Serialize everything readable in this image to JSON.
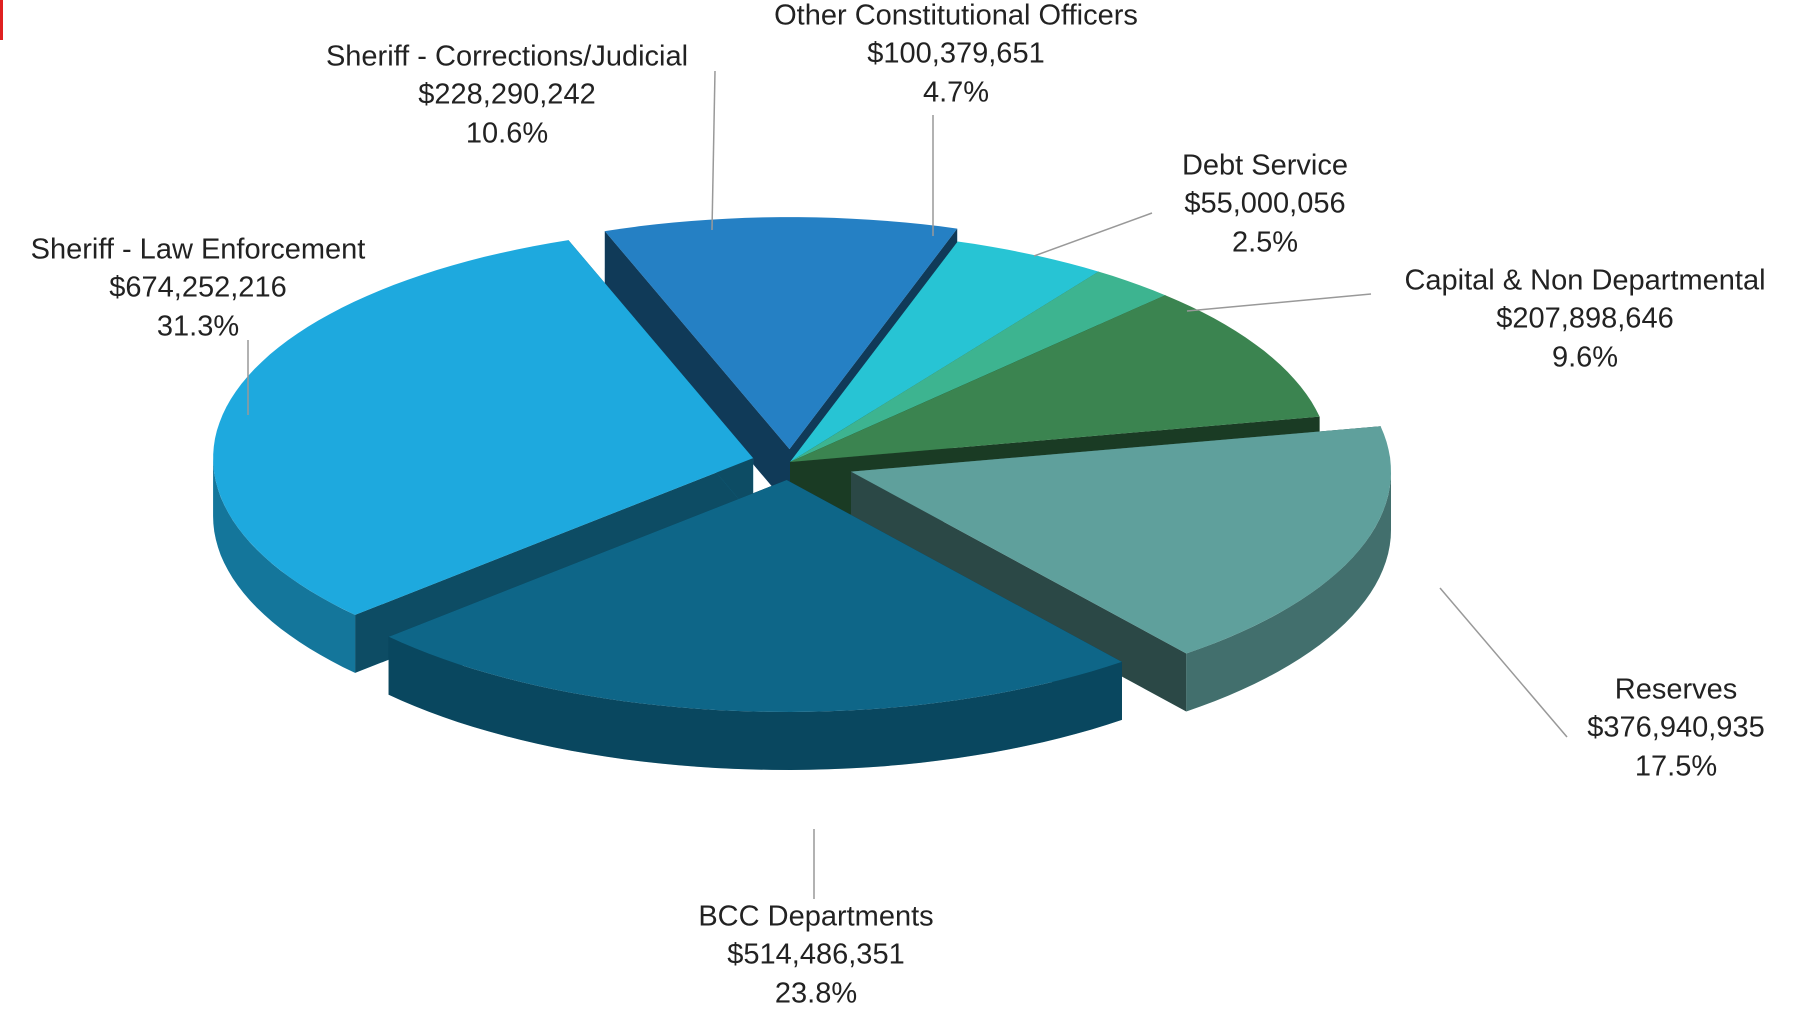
{
  "chart_data": {
    "type": "pie",
    "categories": [
      "Sheriff - Corrections/Judicial",
      "Other Constitutional Officers",
      "Debt Service",
      "Capital & Non Departmental",
      "Reserves",
      "BCC Departments",
      "Sheriff - Law Enforcement"
    ],
    "values": [
      228290242,
      100379651,
      55000056,
      207898646,
      376940935,
      514486351,
      674252216
    ],
    "value_labels": [
      "$228,290,242",
      "$100,379,651",
      "$55,000,056",
      "$207,898,646",
      "$376,940,935",
      "$514,486,351",
      "$674,252,216"
    ],
    "percents": [
      10.6,
      4.7,
      2.5,
      9.6,
      17.5,
      23.8,
      31.3
    ],
    "percent_labels": [
      "10.6%",
      "4.7%",
      "2.5%",
      "9.6%",
      "17.5%",
      "23.8%",
      "31.3%"
    ],
    "colors": [
      "#2580c4",
      "#27c4d4",
      "#3db490",
      "#3b8450",
      "#5fa09c",
      "#0e6688",
      "#1ea9de"
    ]
  }
}
